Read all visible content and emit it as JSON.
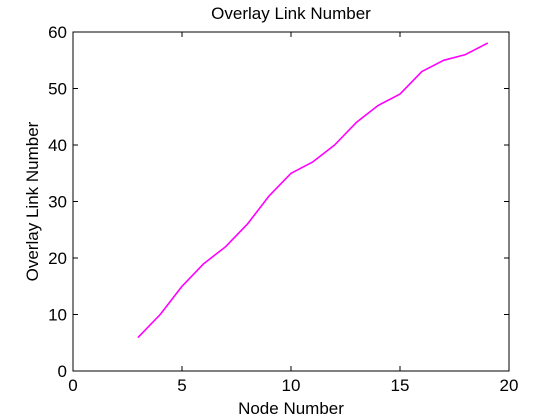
{
  "chart_data": {
    "type": "line",
    "title": "Overlay Link Number",
    "xlabel": "Node Number",
    "ylabel": "Overlay Link Number",
    "xlim": [
      0,
      20
    ],
    "ylim": [
      0,
      60
    ],
    "xticks": [
      0,
      5,
      10,
      15,
      20
    ],
    "yticks": [
      0,
      10,
      20,
      30,
      40,
      50,
      60
    ],
    "grid": false,
    "legend": "none",
    "series": [
      {
        "color": "#ff00ff",
        "x": [
          3,
          4,
          5,
          6,
          7,
          8,
          9,
          10,
          11,
          12,
          13,
          14,
          15,
          16,
          17,
          18,
          19
        ],
        "values": [
          6,
          10,
          15,
          19,
          22,
          26,
          31,
          35,
          37,
          40,
          44,
          47,
          49,
          53,
          55,
          56,
          58
        ]
      }
    ]
  }
}
